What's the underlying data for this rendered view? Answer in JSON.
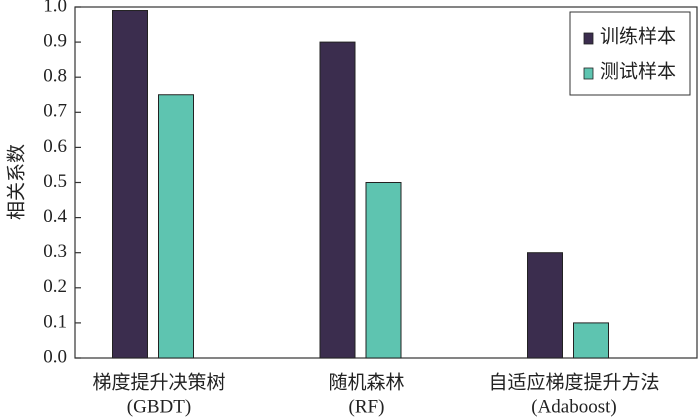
{
  "chart_data": {
    "type": "bar",
    "y_label": "相关系数",
    "categories": [
      [
        "梯度提升决策树",
        "(GBDT)"
      ],
      [
        "随机森林",
        "(RF)"
      ],
      [
        "自适应梯度提升方法",
        "(Adaboost)"
      ]
    ],
    "series": [
      {
        "name": "训练样本",
        "color": "#3b2d4e",
        "values": [
          0.99,
          0.9,
          0.3
        ]
      },
      {
        "name": "测试样本",
        "color": "#5ec4b0",
        "values": [
          0.75,
          0.5,
          0.1
        ]
      }
    ],
    "ylim": [
      0,
      1
    ],
    "yticks": [
      {
        "value": 0,
        "label": "0.0"
      },
      0.1,
      0.2,
      0.3,
      0.4,
      0.5,
      0.6,
      0.7,
      0.8,
      0.9,
      {
        "value": 1,
        "label": "1.0"
      }
    ],
    "grid": false,
    "legend": "upper right"
  }
}
